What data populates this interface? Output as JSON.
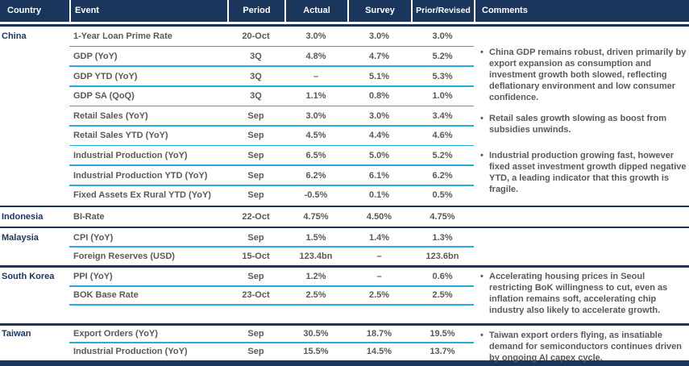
{
  "header": {
    "columns": [
      "Country",
      "Event",
      "Period",
      "Actual",
      "Survey",
      "Prior/Revised",
      "Comments"
    ]
  },
  "colors": {
    "navy": "#1b365d",
    "cyan": "#29abe2",
    "text_gray": "#5c5759",
    "header_text": "#ffffff",
    "background": "#ffffff"
  },
  "sections": [
    {
      "country": "China",
      "rows": [
        {
          "event": "1-Year Loan Prime Rate",
          "period": "20-Oct",
          "actual": "3.0%",
          "survey": "3.0%",
          "prior": "3.0%"
        },
        {
          "event": "GDP (YoY)",
          "period": "3Q",
          "actual": "4.8%",
          "survey": "4.7%",
          "prior": "5.2%"
        },
        {
          "event": "GDP YTD (YoY)",
          "period": "3Q",
          "actual": "–",
          "survey": "5.1%",
          "prior": "5.3%"
        },
        {
          "event": "GDP SA (QoQ)",
          "period": "3Q",
          "actual": "1.1%",
          "survey": "0.8%",
          "prior": "1.0%"
        },
        {
          "event": "Retail Sales (YoY)",
          "period": "Sep",
          "actual": "3.0%",
          "survey": "3.0%",
          "prior": "3.4%"
        },
        {
          "event": "Retail Sales YTD (YoY)",
          "period": "Sep",
          "actual": "4.5%",
          "survey": "4.4%",
          "prior": "4.6%"
        },
        {
          "event": "Industrial Production (YoY)",
          "period": "Sep",
          "actual": "6.5%",
          "survey": "5.0%",
          "prior": "5.2%"
        },
        {
          "event": "Industrial Production YTD (YoY)",
          "period": "Sep",
          "actual": "6.2%",
          "survey": "6.1%",
          "prior": "6.2%"
        },
        {
          "event": "Fixed Assets Ex Rural YTD (YoY)",
          "period": "Sep",
          "actual": "-0.5%",
          "survey": "0.1%",
          "prior": "0.5%"
        }
      ]
    },
    {
      "country": "Indonesia",
      "rows": [
        {
          "event": "BI-Rate",
          "period": "22-Oct",
          "actual": "4.75%",
          "survey": "4.50%",
          "prior": "4.75%"
        }
      ]
    },
    {
      "country": "Malaysia",
      "rows": [
        {
          "event": "CPI (YoY)",
          "period": "Sep",
          "actual": "1.5%",
          "survey": "1.4%",
          "prior": "1.3%"
        },
        {
          "event": "Foreign Reserves (USD)",
          "period": "15-Oct",
          "actual": "123.4bn",
          "survey": "–",
          "prior": "123.6bn"
        }
      ]
    },
    {
      "country": "South Korea",
      "rows": [
        {
          "event": "PPI (YoY)",
          "period": "Sep",
          "actual": "1.2%",
          "survey": "–",
          "prior": "0.6%"
        },
        {
          "event": "BOK Base Rate",
          "period": "23-Oct",
          "actual": "2.5%",
          "survey": "2.5%",
          "prior": "2.5%"
        }
      ]
    },
    {
      "country": "Taiwan",
      "rows": [
        {
          "event": "Export Orders (YoY)",
          "period": "Sep",
          "actual": "30.5%",
          "survey": "18.7%",
          "prior": "19.5%"
        },
        {
          "event": "Industrial Production (YoY)",
          "period": "Sep",
          "actual": "15.5%",
          "survey": "14.5%",
          "prior": "13.7%"
        }
      ]
    }
  ],
  "comments": {
    "bullet": "•",
    "items": [
      {
        "country": "China",
        "text": "China GDP remains robust, driven primarily by export expansion as consumption and investment growth both slowed, reflecting deflationary environment and low consumer confidence."
      },
      {
        "country": "China",
        "text": "Retail sales growth slowing as boost from subsidies unwinds."
      },
      {
        "country": "China",
        "text": "Industrial production growing fast, however fixed asset investment growth dipped negative YTD, a leading indicator that this growth is fragile."
      },
      {
        "country": "South Korea",
        "text": "Accelerating housing prices in Seoul restricting BoK willingness to cut, even as inflation remains soft, accelerating chip industry also likely to accelerate growth."
      },
      {
        "country": "Taiwan",
        "text": "Taiwan export orders flying, as insatiable demand for semiconductors continues driven by ongoing AI capex cycle."
      }
    ]
  }
}
